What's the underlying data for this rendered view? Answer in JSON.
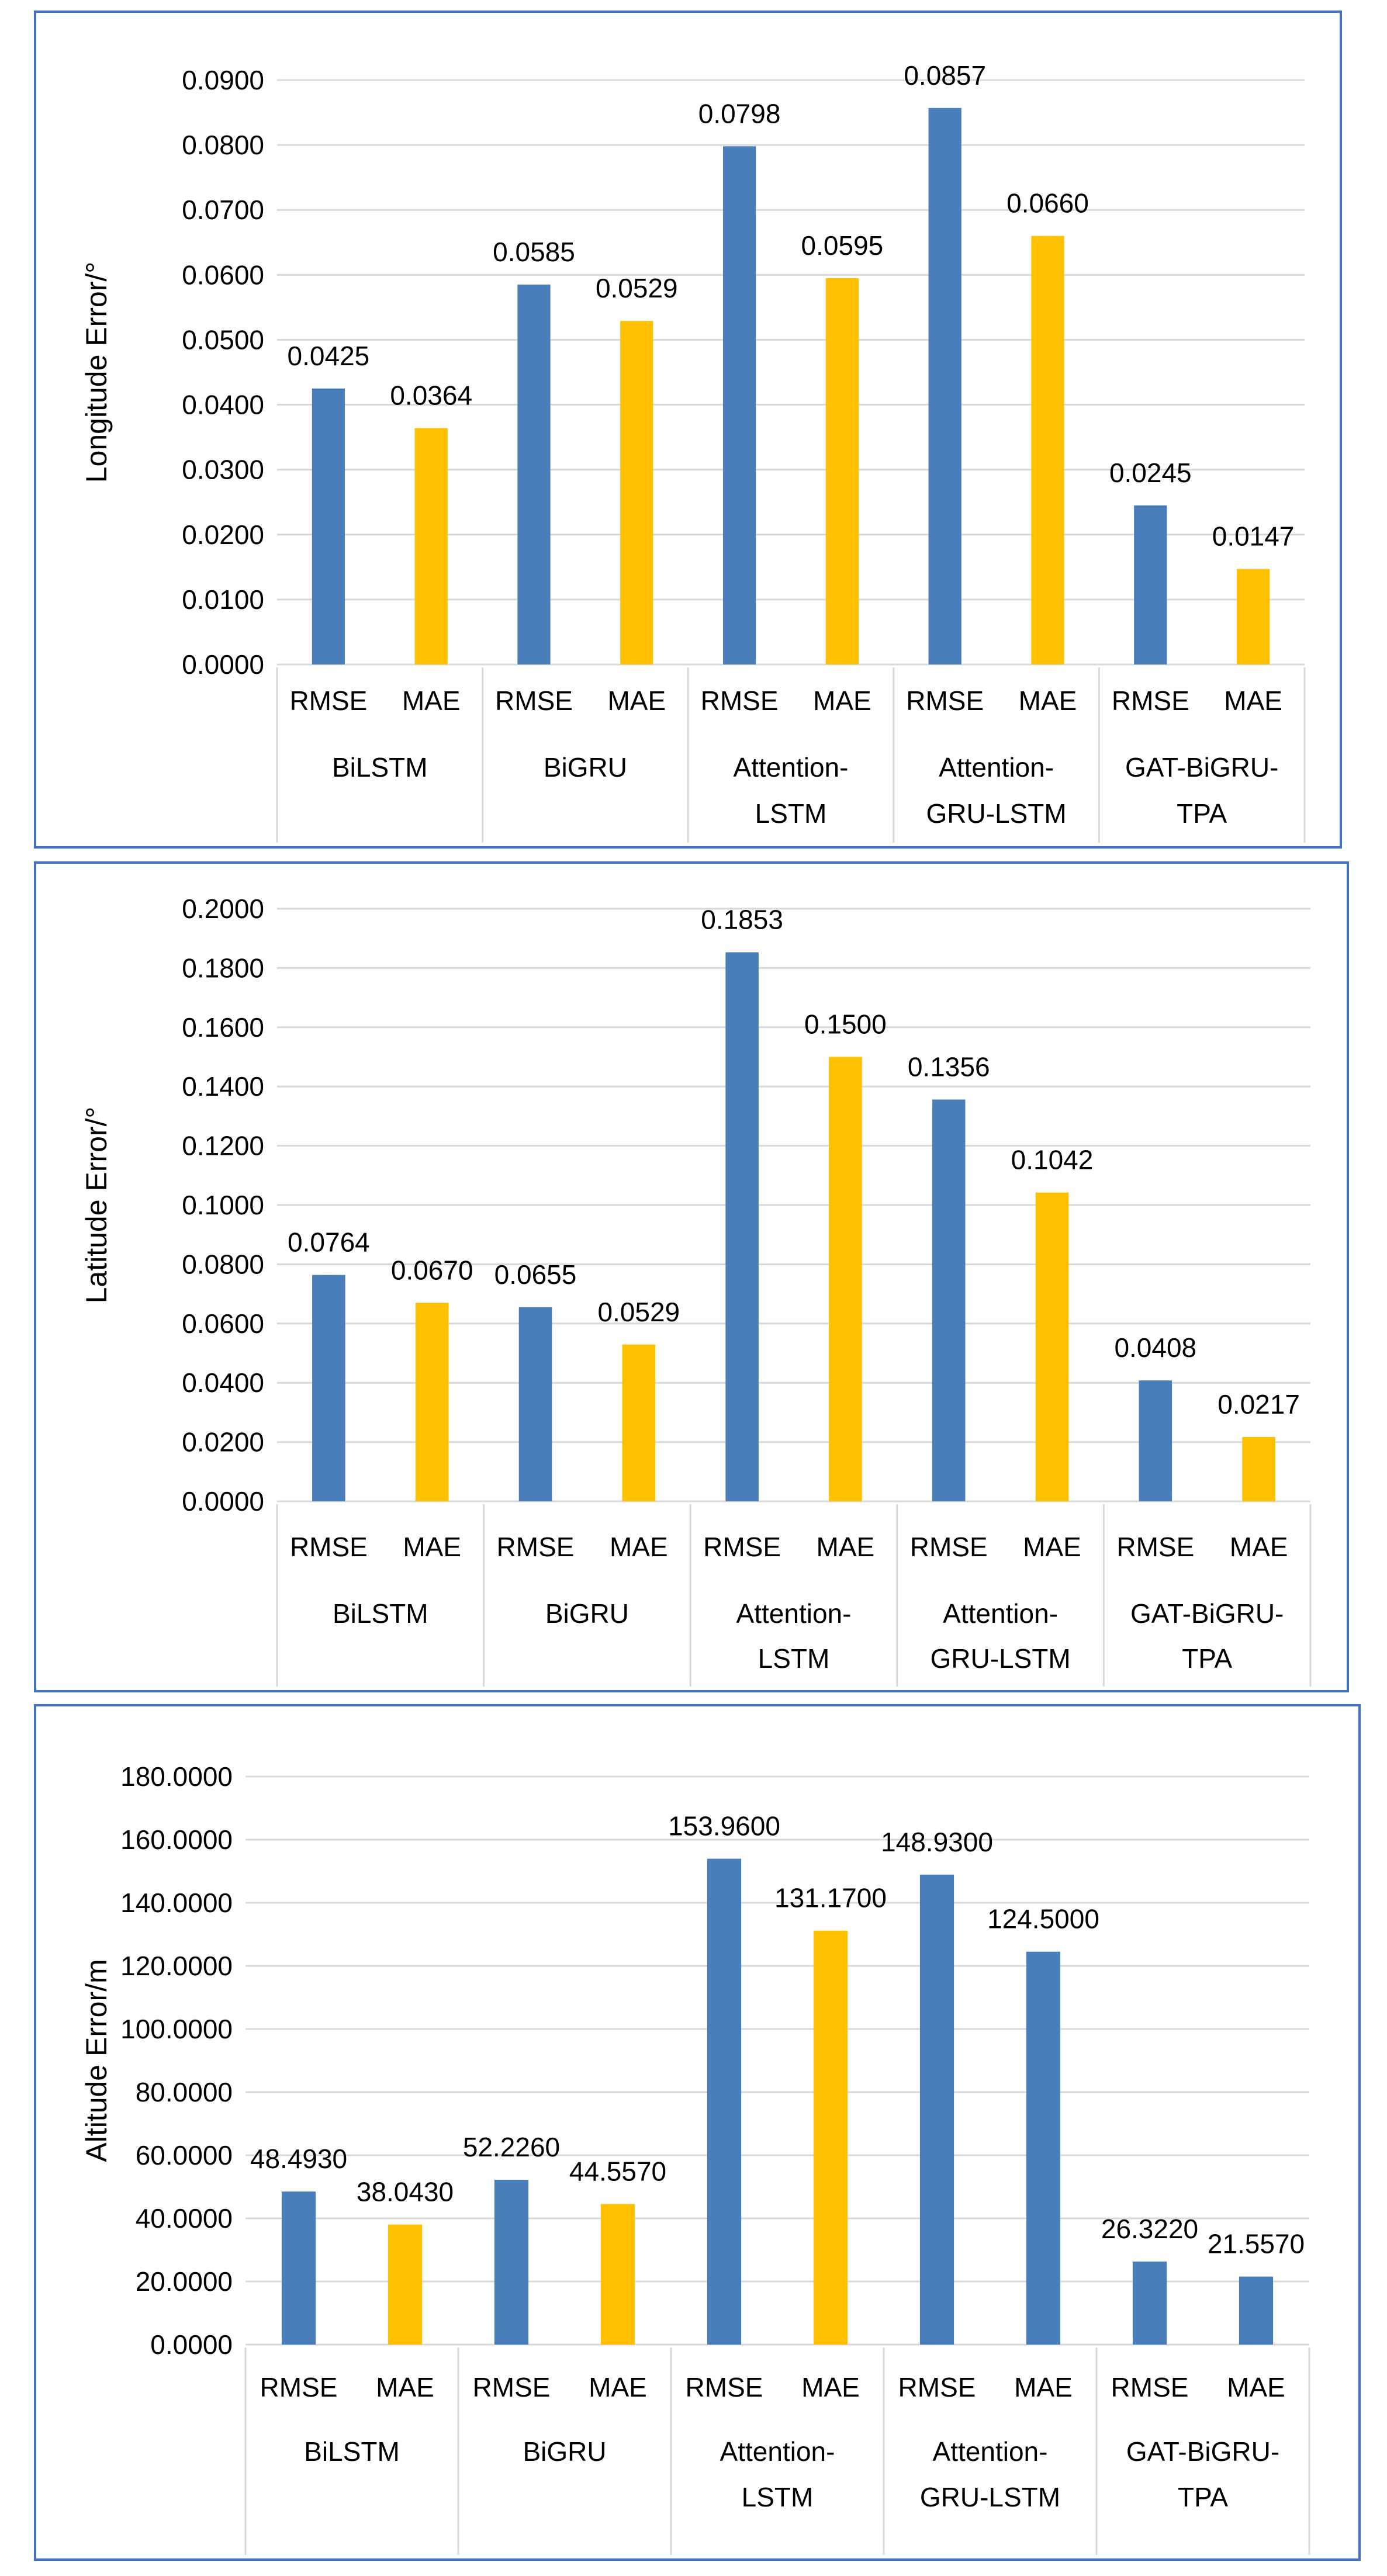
{
  "chart_data": [
    {
      "type": "bar",
      "title": "",
      "ylabel": "Longitude Error/°",
      "xlabel": "",
      "ylim": [
        0,
        0.09
      ],
      "ytick_step": 0.01,
      "ytick_labels": [
        "0.0000",
        "0.0100",
        "0.0200",
        "0.0300",
        "0.0400",
        "0.0500",
        "0.0600",
        "0.0700",
        "0.0800",
        "0.0900"
      ],
      "groups": [
        [
          "BiLSTM"
        ],
        [
          "BiGRU"
        ],
        [
          "Attention-",
          "LSTM"
        ],
        [
          "Attention-",
          "GRU-LSTM"
        ],
        [
          "GAT-BiGRU-",
          "TPA"
        ]
      ],
      "metrics": [
        "RMSE",
        "MAE"
      ],
      "bar_colors": [
        "#4a7ebb",
        "#ffc000",
        "#4a7ebb",
        "#ffc000",
        "#4a7ebb",
        "#ffc000",
        "#4a7ebb",
        "#ffc000",
        "#4a7ebb",
        "#ffc000"
      ],
      "values": [
        0.0425,
        0.0364,
        0.0585,
        0.0529,
        0.0798,
        0.0595,
        0.0857,
        0.066,
        0.0245,
        0.0147
      ],
      "value_labels": [
        "0.0425",
        "0.0364",
        "0.0585",
        "0.0529",
        "0.0798",
        "0.0595",
        "0.0857",
        "0.0660",
        "0.0245",
        "0.0147"
      ]
    },
    {
      "type": "bar",
      "title": "",
      "ylabel": "Latitude Error/°",
      "xlabel": "",
      "ylim": [
        0,
        0.2
      ],
      "ytick_step": 0.02,
      "ytick_labels": [
        "0.0000",
        "0.0200",
        "0.0400",
        "0.0600",
        "0.0800",
        "0.1000",
        "0.1200",
        "0.1400",
        "0.1600",
        "0.1800",
        "0.2000"
      ],
      "groups": [
        [
          "BiLSTM"
        ],
        [
          "BiGRU"
        ],
        [
          "Attention-",
          "LSTM"
        ],
        [
          "Attention-",
          "GRU-LSTM"
        ],
        [
          "GAT-BiGRU-",
          "TPA"
        ]
      ],
      "metrics": [
        "RMSE",
        "MAE"
      ],
      "bar_colors": [
        "#4a7ebb",
        "#ffc000",
        "#4a7ebb",
        "#ffc000",
        "#4a7ebb",
        "#ffc000",
        "#4a7ebb",
        "#ffc000",
        "#4a7ebb",
        "#ffc000"
      ],
      "values": [
        0.0764,
        0.067,
        0.0655,
        0.0529,
        0.1853,
        0.15,
        0.1356,
        0.1042,
        0.0408,
        0.0217
      ],
      "value_labels": [
        "0.0764",
        "0.0670",
        "0.0655",
        "0.0529",
        "0.1853",
        "0.1500",
        "0.1356",
        "0.1042",
        "0.0408",
        "0.0217"
      ]
    },
    {
      "type": "bar",
      "title": "",
      "ylabel": "Altitude Error/m",
      "xlabel": "",
      "ylim": [
        0,
        180
      ],
      "ytick_step": 20,
      "ytick_labels": [
        "0.0000",
        "20.0000",
        "40.0000",
        "60.0000",
        "80.0000",
        "100.0000",
        "120.0000",
        "140.0000",
        "160.0000",
        "180.0000"
      ],
      "groups": [
        [
          "BiLSTM"
        ],
        [
          "BiGRU"
        ],
        [
          "Attention-",
          "LSTM"
        ],
        [
          "Attention-",
          "GRU-LSTM"
        ],
        [
          "GAT-BiGRU-",
          "TPA"
        ]
      ],
      "metrics": [
        "RMSE",
        "MAE"
      ],
      "bar_colors": [
        "#4a7ebb",
        "#ffc000",
        "#4a7ebb",
        "#ffc000",
        "#4a7ebb",
        "#ffc000",
        "#4a7ebb",
        "#4a7ebb",
        "#4a7ebb",
        "#4a7ebb"
      ],
      "values": [
        48.493,
        38.043,
        52.226,
        44.557,
        153.96,
        131.17,
        148.93,
        124.5,
        26.322,
        21.557
      ],
      "value_labels": [
        "48.4930",
        "38.0430",
        "52.2260",
        "44.5570",
        "153.9600",
        "131.1700",
        "148.9300",
        "124.5000",
        "26.3220",
        "21.5570"
      ]
    }
  ]
}
